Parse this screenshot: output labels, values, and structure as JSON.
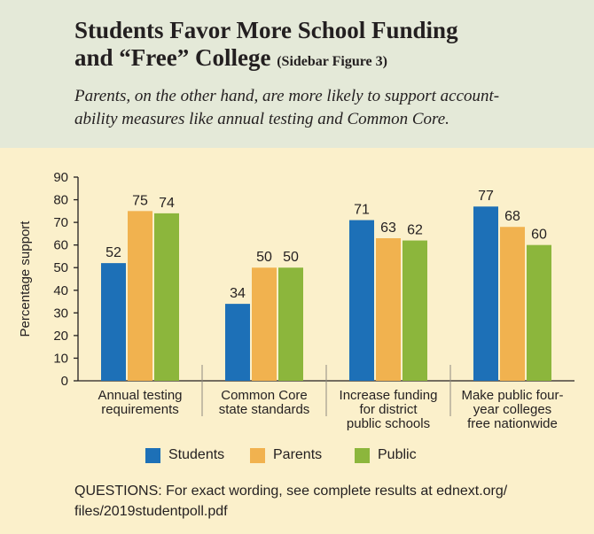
{
  "title": {
    "line1": "Students Favor More School Funding",
    "line2": "and “Free” College",
    "note": "(Sidebar Figure 3)"
  },
  "subtitle": {
    "line1": "Parents, on the other hand, are more likely to support account-",
    "line2": "ability measures like annual testing and Common Core."
  },
  "colors": {
    "Students": "#1d70b7",
    "Parents": "#f1b24f",
    "Public": "#8cb63c"
  },
  "chart_data": {
    "type": "bar",
    "ylabel": "Percentage support",
    "ylim": [
      0,
      90
    ],
    "yticks": [
      0,
      10,
      20,
      30,
      40,
      50,
      60,
      70,
      80,
      90
    ],
    "categories": [
      [
        "Annual testing",
        "requirements"
      ],
      [
        "Common Core",
        "state standards"
      ],
      [
        "Increase funding",
        "for district",
        "public schools"
      ],
      [
        "Make public four-",
        "year colleges",
        "free nationwide"
      ]
    ],
    "series": [
      {
        "name": "Students",
        "values": [
          52,
          34,
          71,
          77
        ]
      },
      {
        "name": "Parents",
        "values": [
          75,
          50,
          63,
          68
        ]
      },
      {
        "name": "Public",
        "values": [
          74,
          50,
          62,
          60
        ]
      }
    ],
    "grid": false,
    "legend": "bottom"
  },
  "questions": {
    "line1": "QUESTIONS: For exact wording, see complete results at ednext.org/",
    "line2": "files/2019studentpoll.pdf"
  }
}
